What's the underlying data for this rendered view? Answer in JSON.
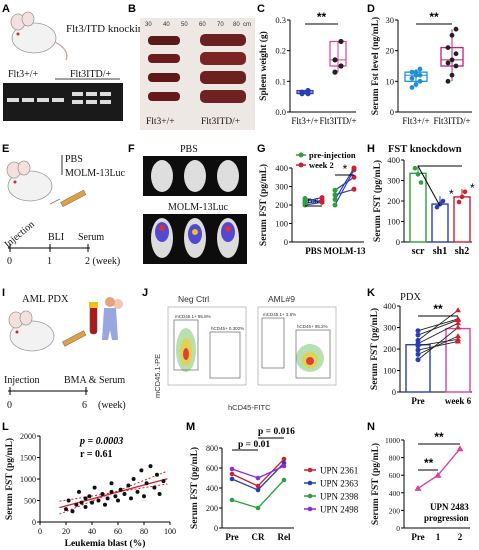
{
  "panels": {
    "A": {
      "letter": "A",
      "title": "Flt3/ITD knockin",
      "genotype_wt": "Flt3+/+",
      "genotype_itd": "Flt3ITD/+"
    },
    "B": {
      "letter": "B",
      "scale_ticks": [
        "30",
        "40",
        "50",
        "60",
        "70",
        "80"
      ],
      "scale_unit": "cm",
      "label_wt": "Flt3+/+",
      "label_itd": "Flt3ITD/+"
    },
    "C": {
      "letter": "C",
      "ylabel": "Spleen weight (g)",
      "yticks": [
        "0.0",
        "0.1",
        "0.2",
        "0.3"
      ],
      "categories": [
        "Flt3+/+",
        "Flt3ITD/+"
      ],
      "sig": "**"
    },
    "D": {
      "letter": "D",
      "ylabel": "Serum Fst level (ng/mL)",
      "yticks": [
        "0",
        "10",
        "20",
        "30"
      ],
      "categories": [
        "Flt3+/+",
        "Flt3ITD/+"
      ],
      "sig": "**"
    },
    "E": {
      "letter": "E",
      "legend1": "PBS",
      "legend2": "MOLM-13Luc",
      "steps": [
        "Injection",
        "BLI",
        "Serum"
      ],
      "ticks": [
        "0",
        "1",
        "2 (week)"
      ]
    },
    "F": {
      "letter": "F",
      "top_label": "PBS",
      "bottom_label": "MOLM-13Luc"
    },
    "G": {
      "letter": "G",
      "ylabel": "Serum FST (pg/mL)",
      "yticks": [
        "0",
        "100",
        "200",
        "300",
        "400"
      ],
      "groups": [
        "PBS",
        "MOLM-13"
      ],
      "legend": [
        "pre-injection",
        "week 2"
      ],
      "sig_left": "n.s",
      "sig_right": "*"
    },
    "H": {
      "letter": "H",
      "title": "FST knockdown",
      "ylabel": "Serum FST (pg/mL)",
      "yticks": [
        "0",
        "100",
        "200",
        "300",
        "400"
      ],
      "categories": [
        "scr",
        "sh1",
        "sh2"
      ],
      "sig": [
        "*",
        "*"
      ]
    },
    "I": {
      "letter": "I",
      "title": "AML PDX",
      "steps": [
        "Injection",
        "BMA & Serum"
      ],
      "ticks": [
        "0",
        "6",
        "(week)"
      ]
    },
    "J": {
      "letter": "J",
      "panels": [
        "Neg Ctrl",
        "AML#9"
      ],
      "ylabel": "mCD45.1-PE",
      "xlabel": "hCD45-FITC",
      "gate_left_a": "mCD45.1+ 95.8%",
      "gate_right_a": "hCD45+ 0.302%",
      "gate_left_b": "mCD45.1+ 3.8%",
      "gate_right_b": "hCD45+ 95.2%"
    },
    "K": {
      "letter": "K",
      "title": "PDX",
      "ylabel": "Serum FST (pg/mL)",
      "yticks": [
        "0",
        "100",
        "200",
        "300",
        "400"
      ],
      "categories": [
        "Pre",
        "week 6"
      ],
      "sig": "**"
    },
    "L": {
      "letter": "L",
      "p_text": "p = 0.0003",
      "r_text": "r = 0.61",
      "ylabel": "Serum FST (pg/mL)",
      "xlabel": "Leukemia blast (%)",
      "yticks": [
        "0",
        "500",
        "1000",
        "1500",
        "2000"
      ],
      "xticks": [
        "0",
        "20",
        "40",
        "60",
        "80",
        "100"
      ]
    },
    "M": {
      "letter": "M",
      "ylabel": "Serum FST (pg/mL)",
      "yticks": [
        "0",
        "200",
        "400",
        "600",
        "800"
      ],
      "categories": [
        "Pre",
        "CR",
        "Rel"
      ],
      "p1": "p = 0.01",
      "p2": "p = 0.016",
      "series_names": [
        "UPN 2361",
        "UPN 2363",
        "UPN 2398",
        "UPN 2498"
      ]
    },
    "N": {
      "letter": "N",
      "ylabel": "Serum FST (pg/mL)",
      "yticks": [
        "0",
        "200",
        "400",
        "600",
        "800",
        "1000"
      ],
      "categories": [
        "Pre",
        "1",
        "2"
      ],
      "sig1": "**",
      "sig2": "**",
      "note1": "UPN 2483",
      "note2": "progression"
    }
  },
  "colors": {
    "green": "#2e9e3e",
    "blue": "#2a3db5",
    "red": "#d02030",
    "pink": "#e0409a",
    "purple": "#8a2be2",
    "orange": "#f08a3c",
    "cyan": "#1f8fd8",
    "magenta": "#c0207a"
  },
  "chart_data": [
    {
      "id": "C",
      "type": "box",
      "categories": [
        "Flt3+/+",
        "Flt3ITD/+"
      ],
      "series": [
        {
          "values": [
            [
              0.06,
              0.06,
              0.065,
              0.07
            ],
            [
              0.13,
              0.15,
              0.17,
              0.23
            ]
          ]
        }
      ],
      "ylim": [
        0,
        0.3
      ]
    },
    {
      "id": "D",
      "type": "box",
      "categories": [
        "Flt3+/+",
        "Flt3ITD/+"
      ],
      "series": [
        {
          "values": [
            [
              8,
              9,
              10,
              11,
              12,
              12,
              13,
              13,
              14
            ],
            [
              10,
              12,
              15,
              16,
              17,
              19,
              21,
              25,
              27
            ]
          ]
        }
      ],
      "ylim": [
        0,
        30
      ]
    },
    {
      "id": "G",
      "type": "line",
      "categories": [
        "PBS",
        "MOLM-13"
      ],
      "pairs": {
        "PBS": [
          [
            210,
            225
          ],
          [
            200,
            215
          ],
          [
            235,
            215
          ],
          [
            220,
            240
          ]
        ],
        "MOLM-13": [
          [
            200,
            390
          ],
          [
            230,
            400
          ],
          [
            255,
            285
          ],
          [
            280,
            350
          ]
        ]
      },
      "ylim": [
        0,
        400
      ]
    },
    {
      "id": "H",
      "type": "bar",
      "categories": [
        "scr",
        "sh1",
        "sh2"
      ],
      "values": [
        335,
        185,
        220
      ],
      "points": [
        [
          360,
          330,
          290
        ],
        [
          170,
          185,
          200
        ],
        [
          195,
          220,
          245
        ]
      ],
      "ylim": [
        0,
        400
      ]
    },
    {
      "id": "K",
      "type": "line",
      "categories": [
        "Pre",
        "week 6"
      ],
      "pairs": [
        [
          150,
          300
        ],
        [
          175,
          260
        ],
        [
          195,
          235
        ],
        [
          215,
          245
        ],
        [
          225,
          320
        ],
        [
          240,
          380
        ],
        [
          265,
          335
        ],
        [
          285,
          340
        ]
      ],
      "bar_values": [
        220,
        295
      ],
      "ylim": [
        0,
        400
      ]
    },
    {
      "id": "L",
      "type": "scatter",
      "x": [
        20,
        22,
        25,
        28,
        30,
        32,
        35,
        35,
        38,
        40,
        42,
        45,
        48,
        50,
        52,
        55,
        55,
        58,
        60,
        62,
        65,
        68,
        70,
        72,
        75,
        78,
        80,
        82,
        85,
        88,
        90,
        92,
        95
      ],
      "y": [
        300,
        500,
        250,
        400,
        700,
        450,
        550,
        350,
        600,
        450,
        800,
        500,
        650,
        400,
        550,
        700,
        900,
        600,
        500,
        750,
        650,
        850,
        550,
        1000,
        700,
        1200,
        600,
        900,
        1300,
        800,
        1100,
        650,
        950
      ],
      "xlim": [
        0,
        100
      ],
      "ylim": [
        0,
        2000
      ]
    },
    {
      "id": "M",
      "type": "line",
      "categories": [
        "Pre",
        "CR",
        "Rel"
      ],
      "series": [
        {
          "name": "UPN 2361",
          "values": [
            540,
            420,
            690
          ]
        },
        {
          "name": "UPN 2363",
          "values": [
            490,
            380,
            650
          ]
        },
        {
          "name": "UPN 2398",
          "values": [
            280,
            200,
            480
          ]
        },
        {
          "name": "UPN 2498",
          "values": [
            590,
            500,
            620
          ]
        }
      ],
      "ylim": [
        0,
        800
      ]
    },
    {
      "id": "N",
      "type": "line",
      "categories": [
        "Pre",
        "1",
        "2"
      ],
      "values": [
        450,
        600,
        900
      ],
      "ylim": [
        0,
        1000
      ]
    }
  ]
}
